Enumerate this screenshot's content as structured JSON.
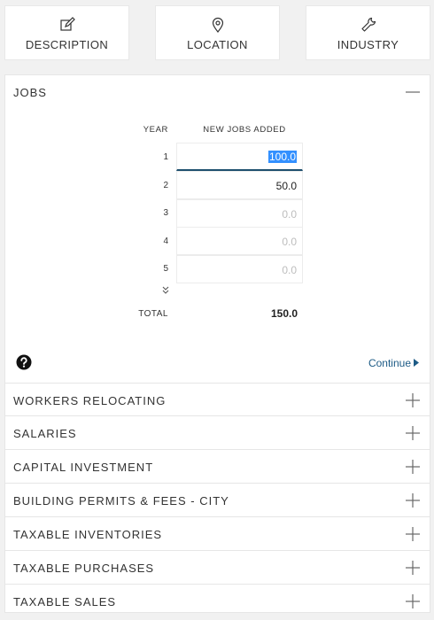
{
  "tabs": [
    {
      "label": "DESCRIPTION",
      "icon": "edit-icon"
    },
    {
      "label": "LOCATION",
      "icon": "map-pin-icon"
    },
    {
      "label": "INDUSTRY",
      "icon": "wrench-icon"
    }
  ],
  "jobs": {
    "title": "JOBS",
    "toggle_icon": "minus-icon",
    "columns": {
      "year": "YEAR",
      "new_jobs": "NEW JOBS ADDED"
    },
    "rows": [
      {
        "year": "1",
        "value": "100.0"
      },
      {
        "year": "2",
        "value": "50.0"
      },
      {
        "year": "3",
        "value": "0.0"
      },
      {
        "year": "4",
        "value": "0.0"
      },
      {
        "year": "5",
        "value": "0.0"
      }
    ],
    "more_icon": "double-chevron-down-icon",
    "total_label": "TOTAL",
    "total_value": "150.0",
    "help_icon": "question-circle-icon",
    "continue_label": "Continue"
  },
  "sections": [
    {
      "title": "WORKERS RELOCATING"
    },
    {
      "title": "SALARIES"
    },
    {
      "title": "CAPITAL INVESTMENT"
    },
    {
      "title": "BUILDING PERMITS & FEES - CITY"
    },
    {
      "title": "TAXABLE INVENTORIES"
    },
    {
      "title": "TAXABLE PURCHASES"
    },
    {
      "title": "TAXABLE SALES"
    }
  ],
  "colors": {
    "accent": "#1d5b86",
    "selection": "#3390ff",
    "active_border": "#1e4f6e"
  }
}
